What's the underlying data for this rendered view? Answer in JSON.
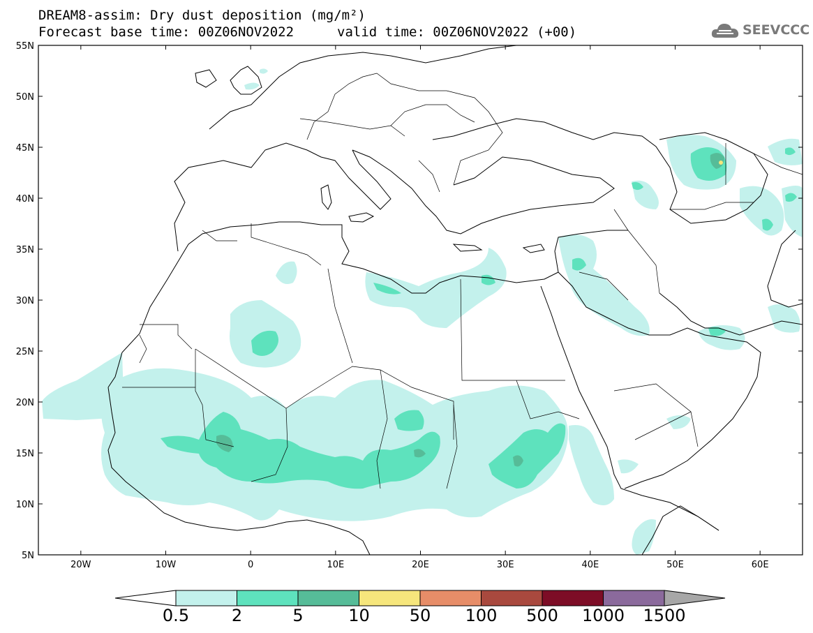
{
  "title": {
    "line1": "DREAM8-assim: Dry dust deposition (mg/m²)",
    "line2": "Forecast base time: 00Z06NOV2022",
    "valid": "valid time: 00Z06NOV2022 (+00)"
  },
  "logo": {
    "text": "SEEVCCC",
    "icon": "cloud-icon"
  },
  "map": {
    "lon_range": [
      -25,
      65
    ],
    "lat_range": [
      5,
      55
    ],
    "lon_ticks": [
      {
        "value": -20,
        "label": "20W"
      },
      {
        "value": -10,
        "label": "10W"
      },
      {
        "value": 0,
        "label": "0"
      },
      {
        "value": 10,
        "label": "10E"
      },
      {
        "value": 20,
        "label": "20E"
      },
      {
        "value": 30,
        "label": "30E"
      },
      {
        "value": 40,
        "label": "40E"
      },
      {
        "value": 50,
        "label": "50E"
      },
      {
        "value": 60,
        "label": "60E"
      }
    ],
    "lat_ticks": [
      {
        "value": 55,
        "label": "55N"
      },
      {
        "value": 50,
        "label": "50N"
      },
      {
        "value": 45,
        "label": "45N"
      },
      {
        "value": 40,
        "label": "40N"
      },
      {
        "value": 35,
        "label": "35N"
      },
      {
        "value": 30,
        "label": "30N"
      },
      {
        "value": 25,
        "label": "25N"
      },
      {
        "value": 20,
        "label": "20N"
      },
      {
        "value": 15,
        "label": "15N"
      },
      {
        "value": 10,
        "label": "10N"
      },
      {
        "value": 5,
        "label": "5N"
      }
    ]
  },
  "colorbar": {
    "levels": [
      "0.5",
      "2",
      "5",
      "10",
      "50",
      "100",
      "500",
      "1000",
      "1500"
    ],
    "colors": [
      "#c3f1ec",
      "#5ee2bd",
      "#56bc98",
      "#f6e67c",
      "#e78d68",
      "#a9493e",
      "#7d0d26",
      "#8b6a9c",
      "#a7a7a7"
    ],
    "low_color": "#ffffff"
  },
  "dust_colors": {
    "light": "#c3f1ec",
    "medium": "#5ee2bd",
    "strong": "#56bc98",
    "peak": "#f6e67c"
  }
}
